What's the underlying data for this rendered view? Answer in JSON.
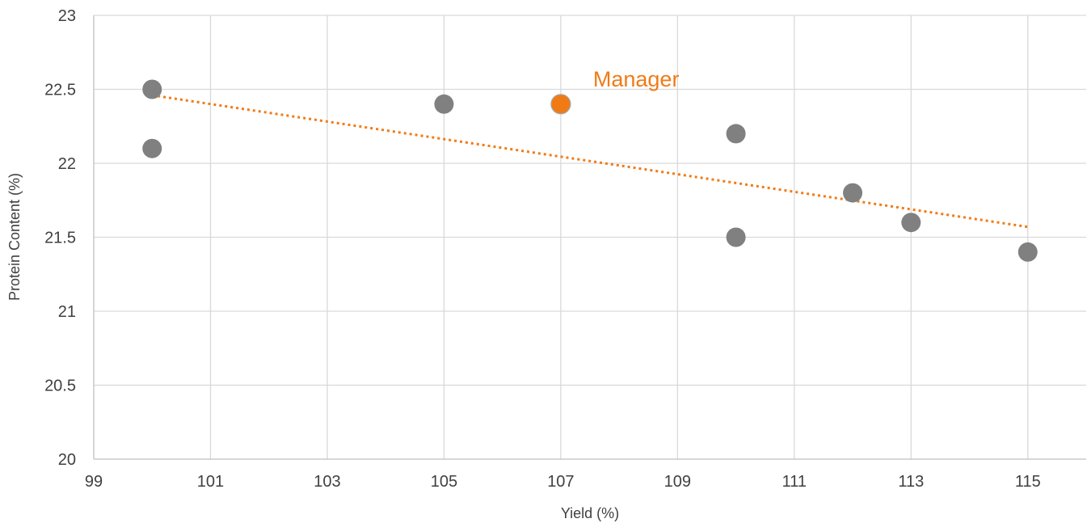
{
  "chart_data": {
    "type": "scatter",
    "xlabel": "Yield (%)",
    "ylabel": "Protein Content (%)",
    "xlim": [
      99,
      116
    ],
    "ylim": [
      20,
      23
    ],
    "x_ticks": [
      "99",
      "101",
      "103",
      "105",
      "107",
      "109",
      "111",
      "113",
      "115"
    ],
    "y_ticks": [
      "20",
      "20.5",
      "21",
      "21.5",
      "22",
      "22.5",
      "23"
    ],
    "grid": true,
    "legend": "none",
    "series": [
      {
        "color": "#808080",
        "points": [
          {
            "x": 100,
            "y": 22.5
          },
          {
            "x": 100,
            "y": 22.1
          },
          {
            "x": 105,
            "y": 22.4
          },
          {
            "x": 110,
            "y": 22.2
          },
          {
            "x": 110,
            "y": 21.5
          },
          {
            "x": 112,
            "y": 21.8
          },
          {
            "x": 113,
            "y": 21.6
          },
          {
            "x": 115,
            "y": 21.4
          }
        ]
      },
      {
        "color": "#F07B16",
        "points": [
          {
            "x": 107,
            "y": 22.4
          }
        ]
      }
    ],
    "trendline": {
      "style": "dotted",
      "color": "#F07B16",
      "start": {
        "x": 100,
        "y": 22.46
      },
      "end": {
        "x": 115,
        "y": 21.57
      }
    },
    "annotations": [
      {
        "text": "Manager",
        "color": "#F07B16",
        "x": 107,
        "y": 22.4
      }
    ]
  }
}
